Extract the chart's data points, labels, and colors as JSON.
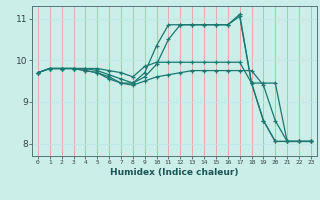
{
  "xlabel": "Humidex (Indice chaleur)",
  "bg_color": "#cceee8",
  "grid_color_v": "#e8a0a0",
  "grid_color_h": "#c0e8e4",
  "line_color": "#1a7870",
  "xlim": [
    -0.5,
    23.5
  ],
  "ylim": [
    7.7,
    11.3
  ],
  "yticks": [
    8,
    9,
    10,
    11
  ],
  "xticks": [
    0,
    1,
    2,
    3,
    4,
    5,
    6,
    7,
    8,
    9,
    10,
    11,
    12,
    13,
    14,
    15,
    16,
    17,
    18,
    19,
    20,
    21,
    22,
    23
  ],
  "series": [
    [
      9.7,
      9.8,
      9.8,
      9.8,
      9.8,
      9.8,
      9.75,
      9.7,
      9.6,
      9.85,
      9.95,
      9.95,
      9.95,
      9.95,
      9.95,
      9.95,
      9.95,
      9.95,
      9.45,
      9.45,
      9.45,
      8.05,
      8.05,
      8.05
    ],
    [
      9.7,
      9.8,
      9.8,
      9.8,
      9.8,
      9.75,
      9.65,
      9.55,
      9.45,
      9.7,
      10.35,
      10.85,
      10.85,
      10.85,
      10.85,
      10.85,
      10.85,
      11.05,
      9.45,
      8.55,
      8.05,
      8.05,
      8.05,
      8.05
    ],
    [
      9.7,
      9.8,
      9.8,
      9.8,
      9.75,
      9.7,
      9.6,
      9.45,
      9.45,
      9.6,
      9.9,
      10.5,
      10.85,
      10.85,
      10.85,
      10.85,
      10.85,
      11.1,
      9.45,
      8.55,
      8.05,
      8.05,
      8.05,
      8.05
    ],
    [
      9.7,
      9.8,
      9.8,
      9.8,
      9.75,
      9.7,
      9.55,
      9.45,
      9.4,
      9.5,
      9.6,
      9.65,
      9.7,
      9.75,
      9.75,
      9.75,
      9.75,
      9.75,
      9.75,
      9.4,
      8.55,
      8.05,
      8.05,
      8.05
    ]
  ]
}
